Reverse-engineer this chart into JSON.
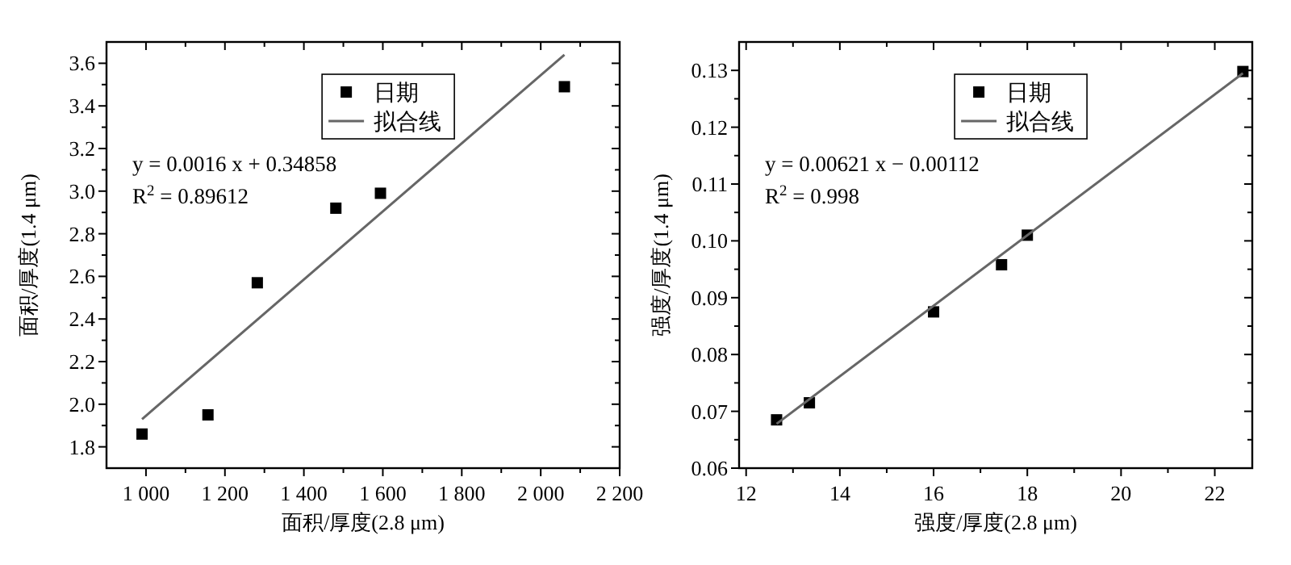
{
  "chart_data": [
    {
      "type": "scatter",
      "xlabel": "面积/厚度(2.8 μm)",
      "ylabel": "面积/厚度(1.4 μm)",
      "xlim": [
        900,
        2200
      ],
      "ylim": [
        1.7,
        3.7
      ],
      "xticks": [
        {
          "value": 1000,
          "label": "1 000"
        },
        {
          "value": 1100,
          "label": null
        },
        {
          "value": 1200,
          "label": "1 200"
        },
        {
          "value": 1300,
          "label": null
        },
        {
          "value": 1400,
          "label": "1 400"
        },
        {
          "value": 1500,
          "label": null
        },
        {
          "value": 1600,
          "label": "1 600"
        },
        {
          "value": 1700,
          "label": null
        },
        {
          "value": 1800,
          "label": "1 800"
        },
        {
          "value": 1900,
          "label": null
        },
        {
          "value": 2000,
          "label": "2 000"
        },
        {
          "value": 2100,
          "label": null
        },
        {
          "value": 2200,
          "label": "2 200"
        }
      ],
      "yticks": [
        {
          "value": 1.8,
          "label": "1.8"
        },
        {
          "value": 1.9,
          "label": null
        },
        {
          "value": 2.0,
          "label": "2.0"
        },
        {
          "value": 2.1,
          "label": null
        },
        {
          "value": 2.2,
          "label": "2.2"
        },
        {
          "value": 2.3,
          "label": null
        },
        {
          "value": 2.4,
          "label": "2.4"
        },
        {
          "value": 2.5,
          "label": null
        },
        {
          "value": 2.6,
          "label": "2.6"
        },
        {
          "value": 2.7,
          "label": null
        },
        {
          "value": 2.8,
          "label": "2.8"
        },
        {
          "value": 2.9,
          "label": null
        },
        {
          "value": 3.0,
          "label": "3.0"
        },
        {
          "value": 3.1,
          "label": null
        },
        {
          "value": 3.2,
          "label": "3.2"
        },
        {
          "value": 3.3,
          "label": null
        },
        {
          "value": 3.4,
          "label": "3.4"
        },
        {
          "value": 3.5,
          "label": null
        },
        {
          "value": 3.6,
          "label": "3.6"
        }
      ],
      "series": [
        {
          "name": "日期",
          "type": "scatter",
          "marker": "square",
          "color": "#000000",
          "x": [
            990,
            1157,
            1282,
            1481,
            1594,
            2060
          ],
          "values": [
            1.86,
            1.95,
            2.57,
            2.92,
            2.99,
            3.49
          ]
        },
        {
          "name": "拟合线",
          "type": "line",
          "color": "#666666",
          "x": [
            990,
            2060
          ],
          "values": [
            1.93,
            3.64
          ]
        }
      ],
      "annotations": [
        "y = 0.0016 x + 0.34858",
        "R$^{2}$ = 0.89612"
      ],
      "legend": "top right",
      "grid": false
    },
    {
      "type": "scatter",
      "xlabel": "强度/厚度(2.8 μm)",
      "ylabel": "强度/厚度(1.4 μm)",
      "xlim": [
        11.85,
        22.8
      ],
      "ylim": [
        0.06,
        0.135
      ],
      "xticks": [
        12,
        {
          "value": 13,
          "label": null
        },
        14,
        {
          "value": 15,
          "label": null
        },
        16,
        {
          "value": 17,
          "label": null
        },
        18,
        {
          "value": 19,
          "label": null
        },
        20,
        {
          "value": 21,
          "label": null
        },
        22
      ],
      "yticks": [
        {
          "value": 0.06,
          "label": "0.06"
        },
        {
          "value": 0.065,
          "label": null
        },
        {
          "value": 0.07,
          "label": "0.07"
        },
        {
          "value": 0.075,
          "label": null
        },
        {
          "value": 0.08,
          "label": "0.08"
        },
        {
          "value": 0.085,
          "label": null
        },
        {
          "value": 0.09,
          "label": "0.09"
        },
        {
          "value": 0.095,
          "label": null
        },
        {
          "value": 0.1,
          "label": "0.10"
        },
        {
          "value": 0.105,
          "label": null
        },
        {
          "value": 0.11,
          "label": "0.11"
        },
        {
          "value": 0.115,
          "label": null
        },
        {
          "value": 0.12,
          "label": "0.12"
        },
        {
          "value": 0.125,
          "label": null
        },
        {
          "value": 0.13,
          "label": "0.13"
        }
      ],
      "series": [
        {
          "name": "日期",
          "type": "scatter",
          "marker": "square",
          "color": "#000000",
          "x": [
            12.65,
            13.35,
            16.0,
            17.45,
            18.0,
            22.6
          ],
          "values": [
            0.0685,
            0.0715,
            0.0875,
            0.0958,
            0.101,
            0.1298
          ]
        },
        {
          "name": "拟合线",
          "type": "line",
          "color": "#666666",
          "x": [
            12.65,
            22.6
          ],
          "values": [
            0.0678,
            0.1295
          ]
        }
      ],
      "annotations": [
        "y = 0.00621 x − 0.00112",
        "R$^{2}$ = 0.998"
      ],
      "legend": "top right",
      "grid": false
    }
  ]
}
